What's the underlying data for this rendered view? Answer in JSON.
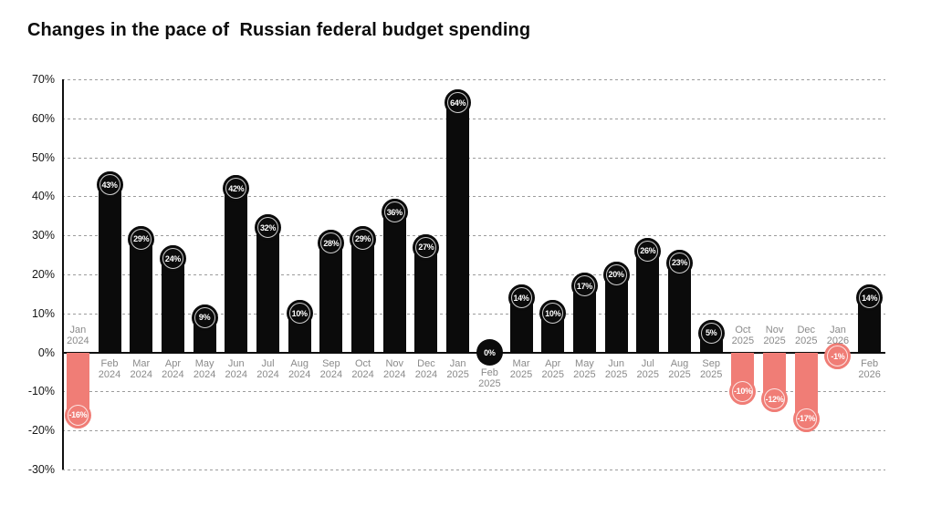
{
  "title": "Changes in the pace of  Russian federal budget spending",
  "chart_data": {
    "type": "bar",
    "title": "Changes in the pace of  Russian federal budget spending",
    "unit": "%",
    "categories": [
      {
        "month": "Jan",
        "year": "2024"
      },
      {
        "month": "Feb",
        "year": "2024"
      },
      {
        "month": "Mar",
        "year": "2024"
      },
      {
        "month": "Apr",
        "year": "2024"
      },
      {
        "month": "May",
        "year": "2024"
      },
      {
        "month": "Jun",
        "year": "2024"
      },
      {
        "month": "Jul",
        "year": "2024"
      },
      {
        "month": "Aug",
        "year": "2024"
      },
      {
        "month": "Sep",
        "year": "2024"
      },
      {
        "month": "Oct",
        "year": "2024"
      },
      {
        "month": "Nov",
        "year": "2024"
      },
      {
        "month": "Dec",
        "year": "2024"
      },
      {
        "month": "Jan",
        "year": "2025"
      },
      {
        "month": "Feb",
        "year": "2025"
      },
      {
        "month": "Mar",
        "year": "2025"
      },
      {
        "month": "Apr",
        "year": "2025"
      },
      {
        "month": "May",
        "year": "2025"
      },
      {
        "month": "Jun",
        "year": "2025"
      },
      {
        "month": "Jul",
        "year": "2025"
      },
      {
        "month": "Aug",
        "year": "2025"
      },
      {
        "month": "Sep",
        "year": "2025"
      },
      {
        "month": "Oct",
        "year": "2025"
      },
      {
        "month": "Nov",
        "year": "2025"
      },
      {
        "month": "Dec",
        "year": "2025"
      },
      {
        "month": "Jan",
        "year": "2026"
      },
      {
        "month": "Feb",
        "year": "2026"
      }
    ],
    "values": [
      -16,
      43,
      29,
      24,
      9,
      42,
      32,
      10,
      28,
      29,
      36,
      27,
      64,
      0,
      14,
      10,
      17,
      20,
      26,
      23,
      5,
      -10,
      -12,
      -17,
      -1,
      14
    ],
    "value_labels": [
      "-16%",
      "43%",
      "29%",
      "24%",
      "9%",
      "42%",
      "32%",
      "10%",
      "28%",
      "29%",
      "36%",
      "27%",
      "64%",
      "0%",
      "14%",
      "10%",
      "17%",
      "20%",
      "26%",
      "23%",
      "5%",
      "-10%",
      "-12%",
      "-17%",
      "-1%",
      "14%"
    ],
    "ylim": [
      -30,
      70
    ],
    "ytick_step": 10,
    "ytick_labels": [
      "70%",
      "60%",
      "50%",
      "40%",
      "30%",
      "20%",
      "10%",
      "0%",
      "-10%",
      "-20%",
      "-30%"
    ],
    "grid": "horizontal-dashed",
    "legend": "none",
    "colors": {
      "positive": "#0b0b0b",
      "negative": "#f07d76"
    }
  }
}
